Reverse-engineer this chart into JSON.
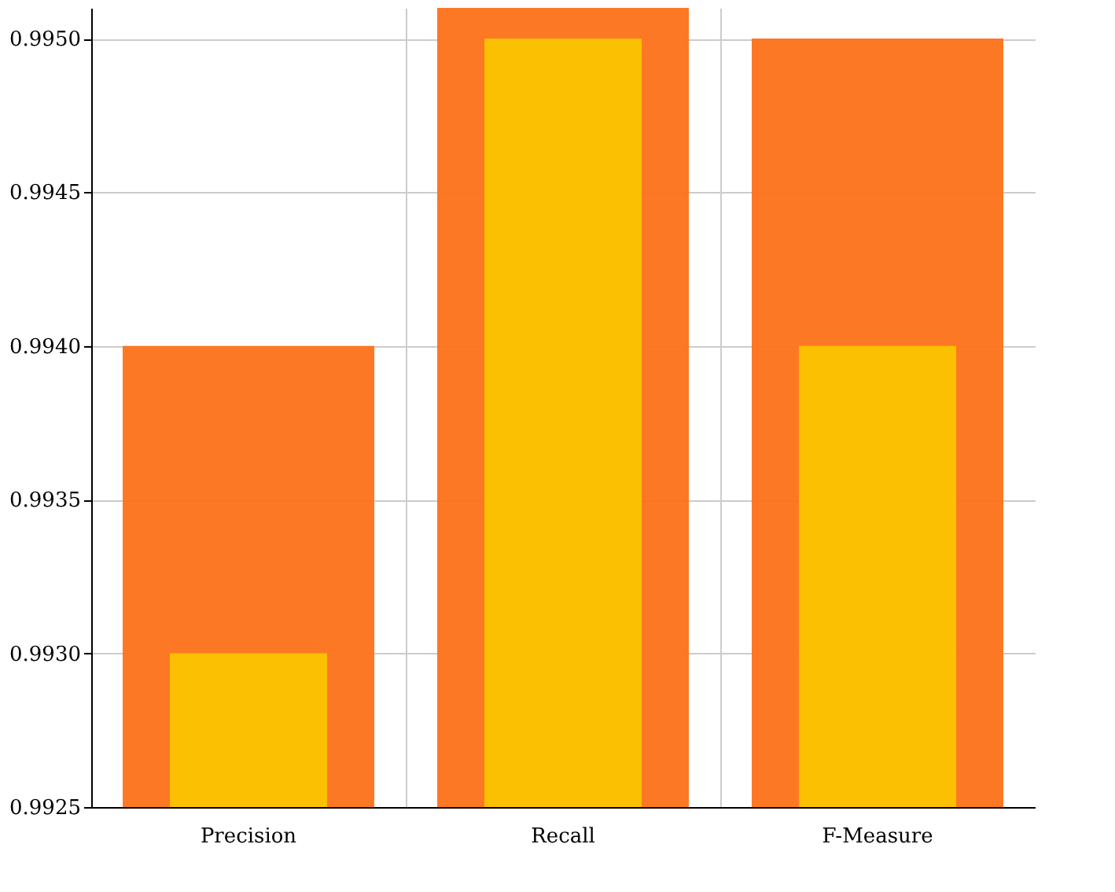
{
  "chart_data": {
    "type": "bar",
    "categories": [
      "Precision",
      "Recall",
      "F-Measure"
    ],
    "series": [
      {
        "color": "#fd7118",
        "values": [
          0.994,
          0.9951,
          0.995
        ]
      },
      {
        "color": "#fbc400",
        "values": [
          0.993,
          0.995,
          0.994
        ]
      }
    ],
    "ylim": [
      0.9925,
      0.9951
    ],
    "yticks": [
      0.9925,
      {
        "value": 0.993,
        "label": "0.9930"
      },
      0.9935,
      {
        "value": 0.994,
        "label": "0.9940"
      },
      0.9945,
      {
        "value": 0.995,
        "label": "0.9950"
      }
    ],
    "grid": true
  }
}
